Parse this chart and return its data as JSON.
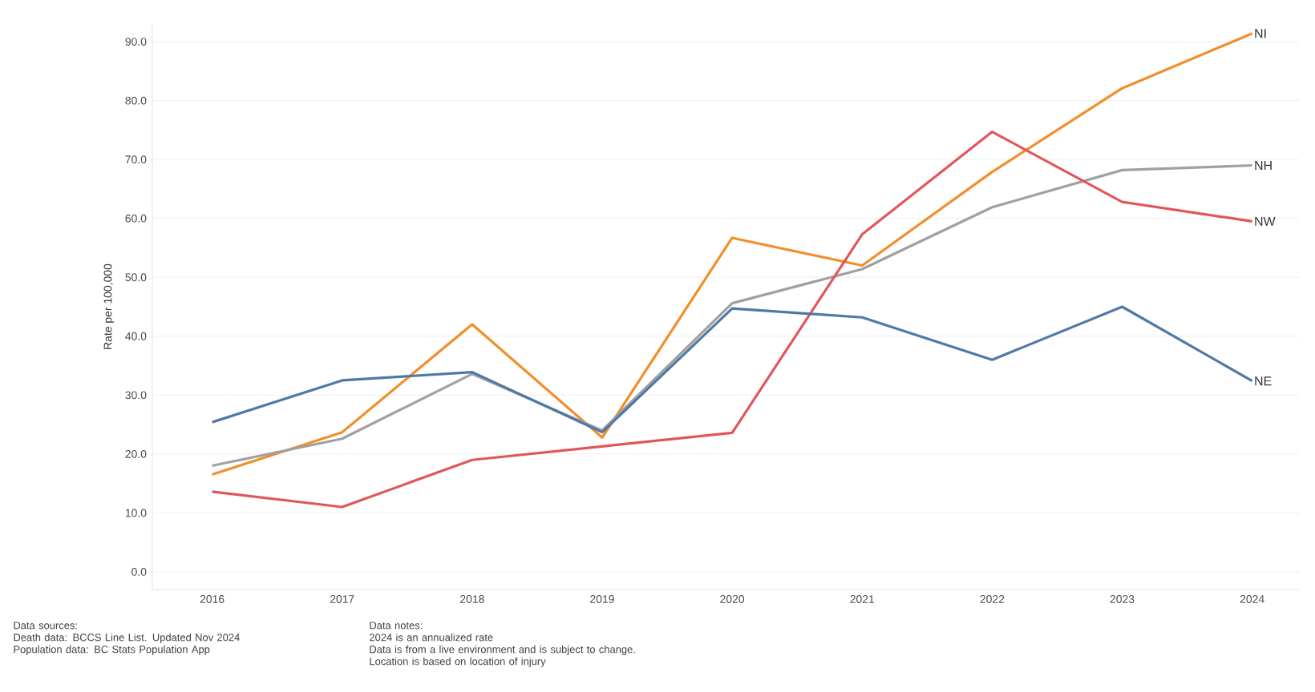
{
  "chart_data": {
    "type": "line",
    "ylabel": "Rate per 100,000",
    "categories": [
      "2016",
      "2017",
      "2018",
      "2019",
      "2020",
      "2021",
      "2022",
      "2023",
      "2024"
    ],
    "series": [
      {
        "name": "NI",
        "color": "#f28e2b",
        "values": [
          16.5,
          23.7,
          42.0,
          22.8,
          56.7,
          52.0,
          67.9,
          82.1,
          91.4
        ]
      },
      {
        "name": "NH",
        "color": "#a0a0a0",
        "values": [
          18.0,
          22.6,
          33.6,
          24.0,
          45.6,
          51.4,
          61.9,
          68.2,
          69.0
        ]
      },
      {
        "name": "NW",
        "color": "#e15759",
        "values": [
          13.6,
          11.0,
          19.0,
          21.3,
          23.6,
          57.3,
          74.7,
          62.8,
          59.5
        ]
      },
      {
        "name": "NE",
        "color": "#4e79a7",
        "values": [
          25.4,
          32.5,
          33.9,
          23.7,
          44.7,
          43.2,
          36.0,
          45.0,
          32.4
        ]
      }
    ],
    "ylim": [
      -3,
      93
    ],
    "yticks": [
      {
        "value": 0,
        "label": "0.0"
      },
      {
        "value": 10,
        "label": "10.0"
      },
      {
        "value": 20,
        "label": "20.0"
      },
      {
        "value": 30,
        "label": "30.0"
      },
      {
        "value": 40,
        "label": "40.0"
      },
      {
        "value": 50,
        "label": "50.0"
      },
      {
        "value": 60,
        "label": "60.0"
      },
      {
        "value": 70,
        "label": "70.0"
      },
      {
        "value": 80,
        "label": "80.0"
      },
      {
        "value": 90,
        "label": "90.0"
      }
    ],
    "grid": "y",
    "legend": false,
    "annotations": [
      "Data sources:\nDeath data: BCCS Line List. Updated Nov 2024\nPopulation data: BC Stats Population App",
      "Data notes:\n2024 is an annualized rate\nData is from a live environment and is subject to change.\nLocation is based on location of injury"
    ]
  }
}
